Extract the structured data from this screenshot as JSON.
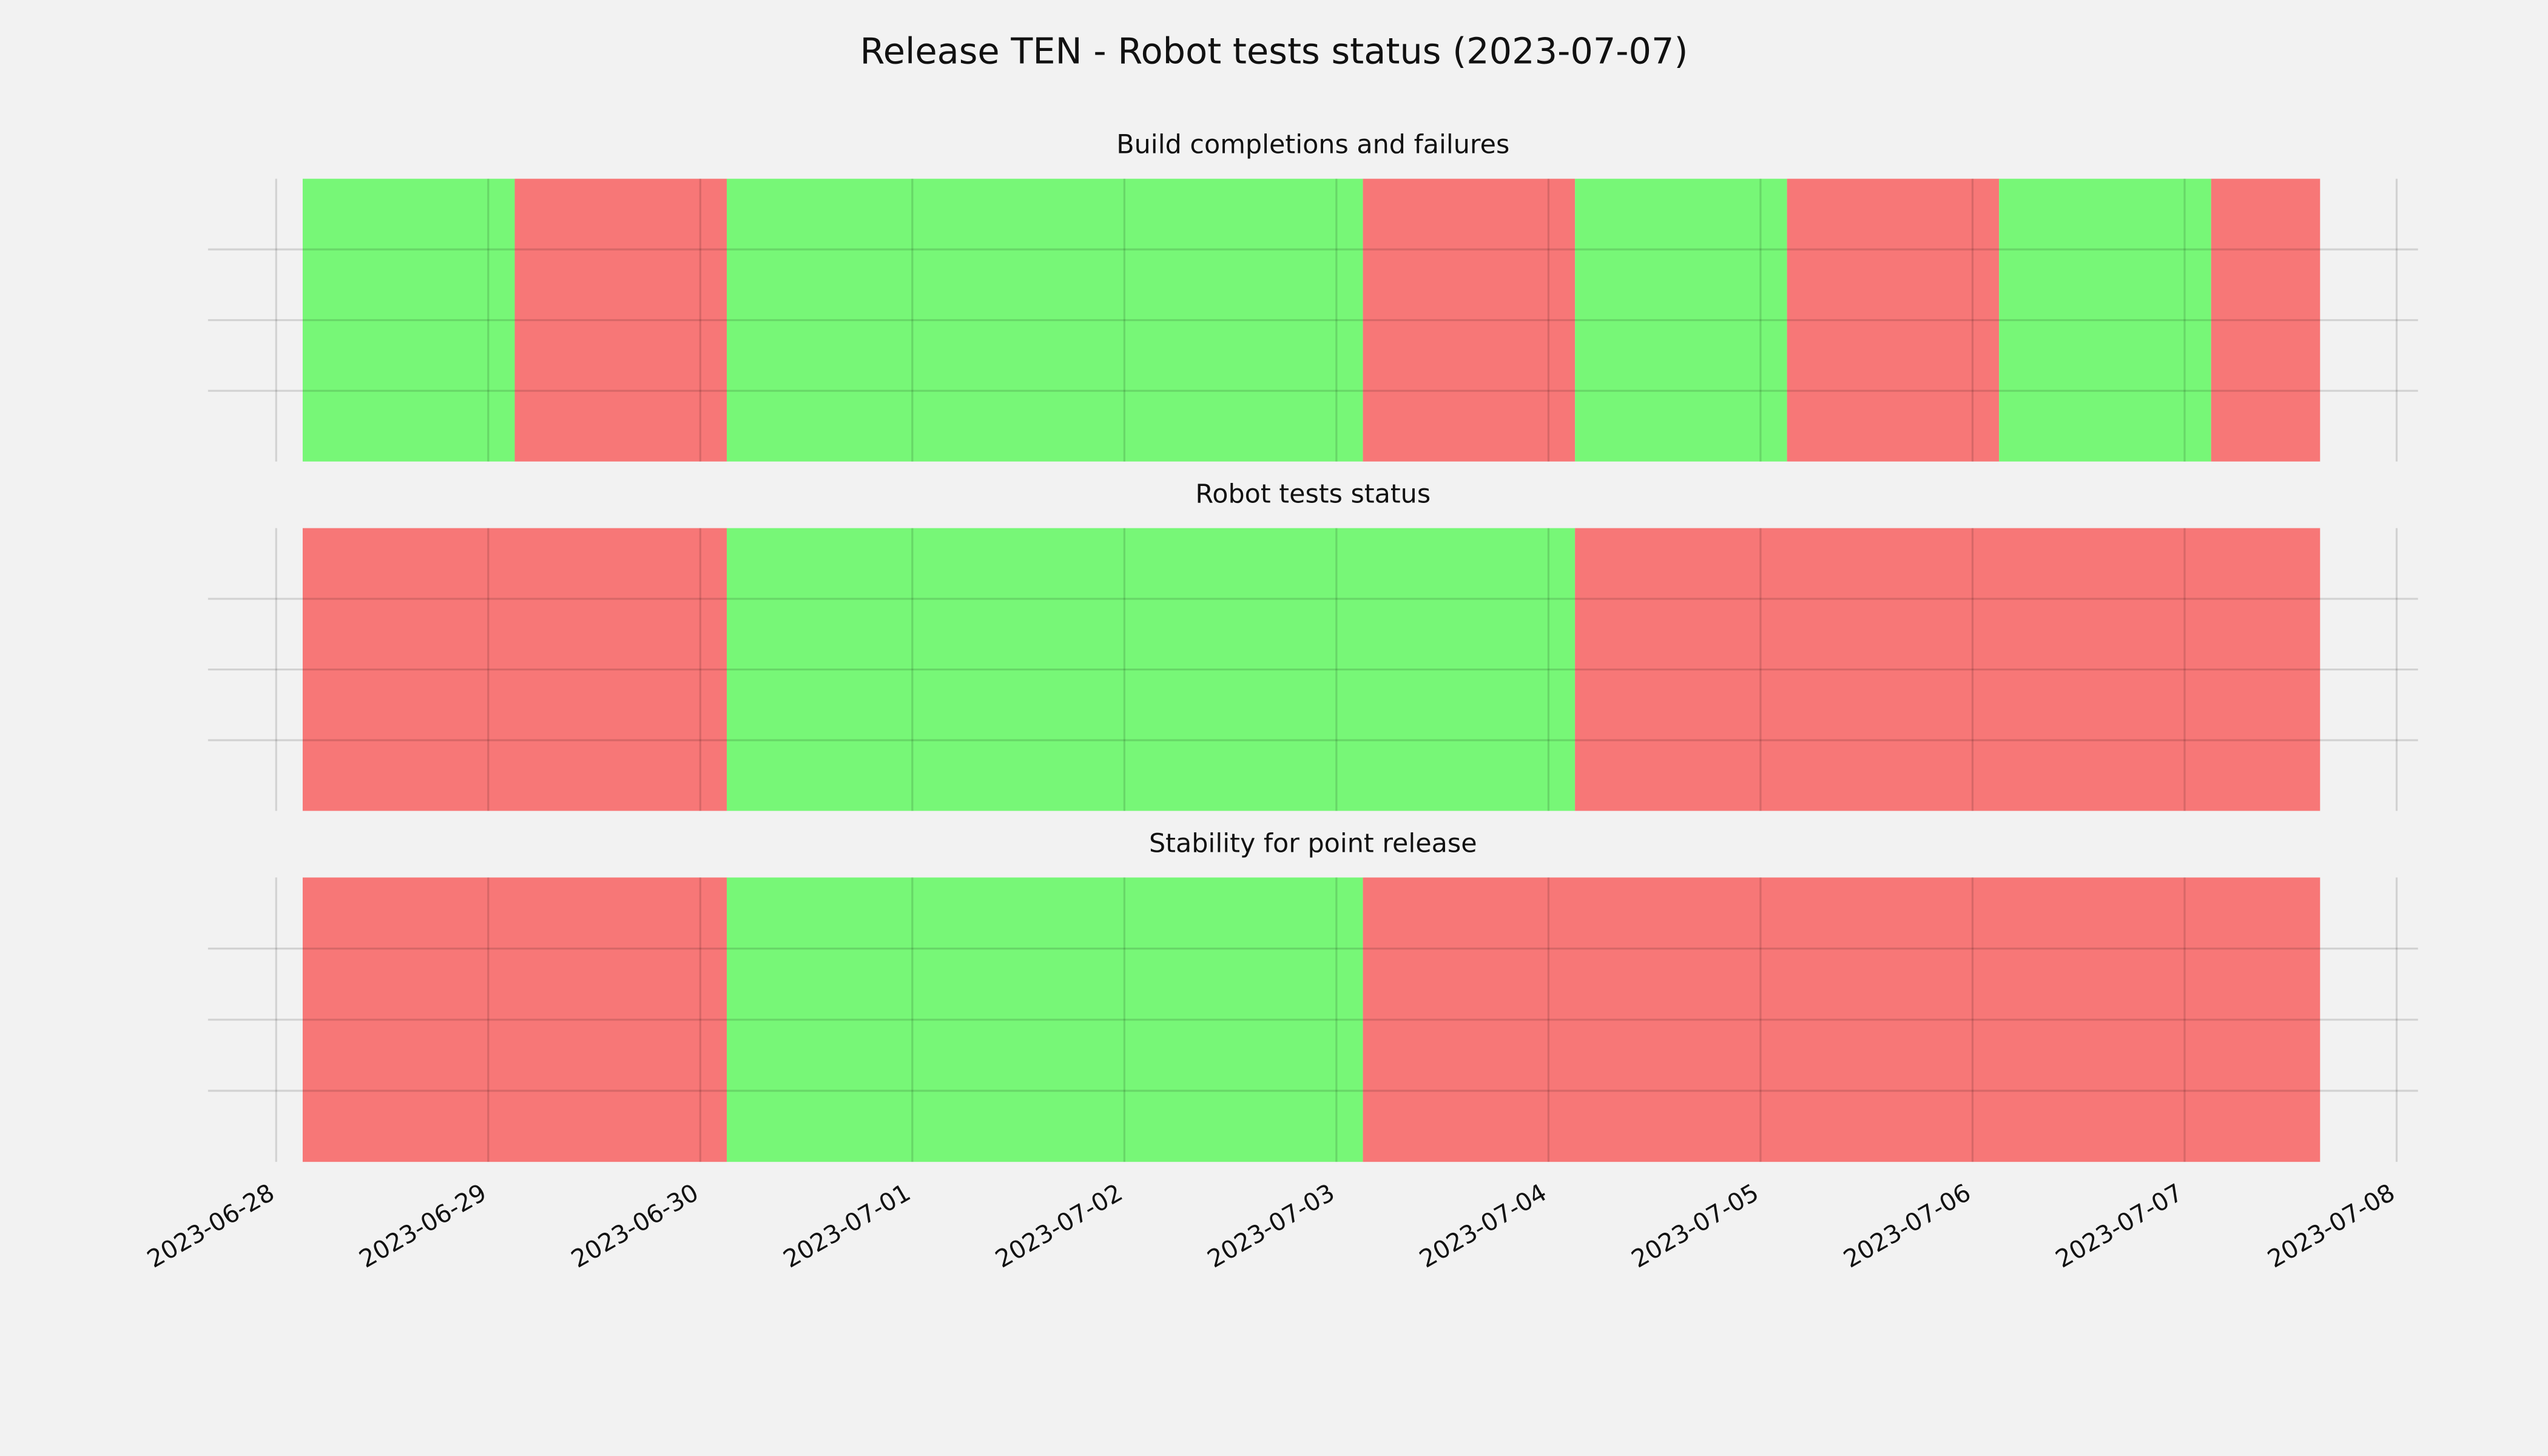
{
  "title": "Release TEN - Robot tests status (2023-07-07)",
  "chart_data": [
    {
      "type": "timeline",
      "title": "Build completions and failures",
      "x": [
        "2023-06-28T03:00",
        "2023-06-29T03:00",
        "2023-06-30T03:00",
        "2023-07-03T03:00",
        "2023-07-04T03:00",
        "2023-07-05T03:00",
        "2023-07-06T03:00",
        "2023-07-07T03:00",
        "2023-07-07T15:20"
      ],
      "colors": [
        "#77f777",
        "#f77777",
        "#77f777",
        "#f77777",
        "#77f777",
        "#f77777",
        "#77f777",
        "#f77777"
      ],
      "xlim": [
        "2023-06-27T16:17",
        "2023-07-08T02:25"
      ],
      "xticks": [
        "2023-06-28",
        "2023-06-29",
        "2023-06-30",
        "2023-07-01",
        "2023-07-02",
        "2023-07-03",
        "2023-07-04",
        "2023-07-05",
        "2023-07-06",
        "2023-07-07",
        "2023-07-08"
      ],
      "grid": true
    },
    {
      "type": "timeline",
      "title": "Robot tests status",
      "x": [
        "2023-06-28T03:00",
        "2023-06-30T03:00",
        "2023-07-04T03:00",
        "2023-07-07T15:20"
      ],
      "colors": [
        "#f77777",
        "#77f777",
        "#f77777"
      ],
      "xlim": [
        "2023-06-27T16:17",
        "2023-07-08T02:25"
      ],
      "xticks": [
        "2023-06-28",
        "2023-06-29",
        "2023-06-30",
        "2023-07-01",
        "2023-07-02",
        "2023-07-03",
        "2023-07-04",
        "2023-07-05",
        "2023-07-06",
        "2023-07-07",
        "2023-07-08"
      ],
      "grid": true
    },
    {
      "type": "timeline",
      "title": "Stability for point release",
      "x": [
        "2023-06-28T03:00",
        "2023-06-30T03:00",
        "2023-07-03T03:00",
        "2023-07-07T15:20"
      ],
      "colors": [
        "#f77777",
        "#77f777",
        "#f77777"
      ],
      "xlim": [
        "2023-06-27T16:17",
        "2023-07-08T02:25"
      ],
      "xticks": [
        "2023-06-28",
        "2023-06-29",
        "2023-06-30",
        "2023-07-01",
        "2023-07-02",
        "2023-07-03",
        "2023-07-04",
        "2023-07-05",
        "2023-07-06",
        "2023-07-07",
        "2023-07-08"
      ],
      "grid": true
    }
  ]
}
